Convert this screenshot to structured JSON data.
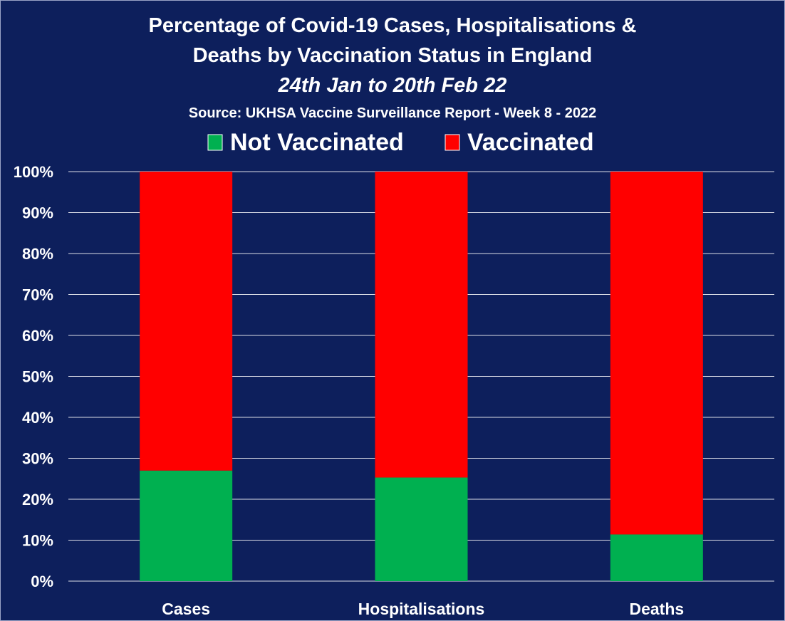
{
  "chart_data": {
    "type": "bar",
    "stacked": true,
    "title_lines": [
      "Percentage of Covid-19 Cases, Hospitalisations &",
      "Deaths by Vaccination Status in England"
    ],
    "subtitle": "24th Jan to 20th Feb 22",
    "source": "Source: UKHSA Vaccine Surveillance Report - Week 8 - 2022",
    "categories": [
      "Cases",
      "Hospitalisations",
      "Deaths"
    ],
    "series": [
      {
        "name": "Not Vaccinated",
        "color": "#00b050",
        "values": [
          27,
          25.3,
          11.4
        ]
      },
      {
        "name": "Vaccinated",
        "color": "#ff0000",
        "values": [
          73,
          74.7,
          88.6
        ]
      }
    ],
    "ylim": [
      0,
      100
    ],
    "yticks": [
      "0%",
      "10%",
      "20%",
      "30%",
      "40%",
      "50%",
      "60%",
      "70%",
      "80%",
      "90%",
      "100%"
    ],
    "grid": true,
    "legend_position": "top",
    "background_color": "#0d1f5c"
  }
}
